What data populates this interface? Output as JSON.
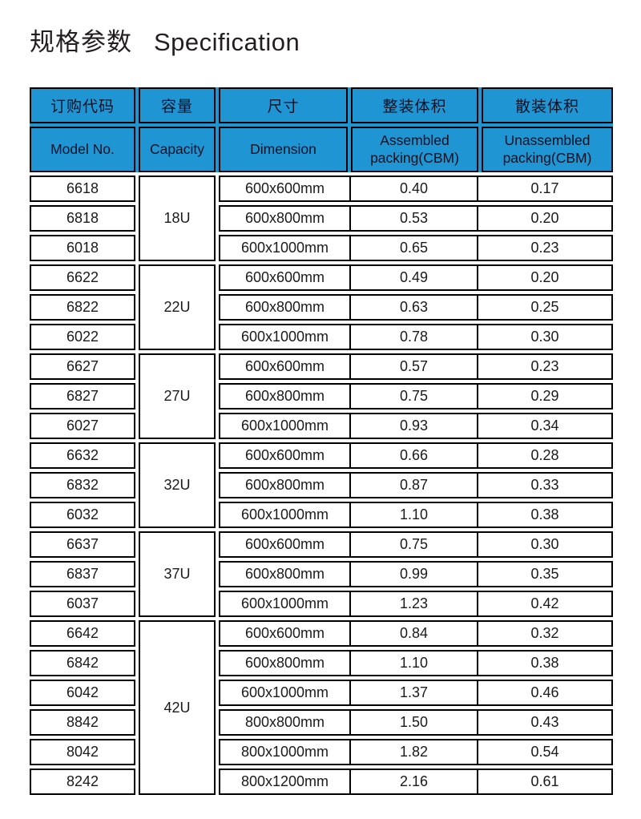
{
  "title": {
    "zh": "规格参数",
    "en": "Specification"
  },
  "colors": {
    "header_bg": "#1f95d4",
    "border": "#000000",
    "text": "#1a1a1a",
    "page_bg": "#ffffff"
  },
  "table": {
    "headers_zh": [
      "订购代码",
      "容量",
      "尺寸",
      "整装体积",
      "散装体积"
    ],
    "headers_en": [
      "Model No.",
      "Capacity",
      "Dimension",
      "Assembled packing(CBM)",
      "Unassembled packing(CBM)"
    ],
    "groups": [
      {
        "capacity": "18U",
        "rows": [
          {
            "model": "6618",
            "dimension": "600x600mm",
            "assembled": "0.40",
            "unassembled": "0.17"
          },
          {
            "model": "6818",
            "dimension": "600x800mm",
            "assembled": "0.53",
            "unassembled": "0.20"
          },
          {
            "model": "6018",
            "dimension": "600x1000mm",
            "assembled": "0.65",
            "unassembled": "0.23"
          }
        ]
      },
      {
        "capacity": "22U",
        "rows": [
          {
            "model": "6622",
            "dimension": "600x600mm",
            "assembled": "0.49",
            "unassembled": "0.20"
          },
          {
            "model": "6822",
            "dimension": "600x800mm",
            "assembled": "0.63",
            "unassembled": "0.25"
          },
          {
            "model": "6022",
            "dimension": "600x1000mm",
            "assembled": "0.78",
            "unassembled": "0.30"
          }
        ]
      },
      {
        "capacity": "27U",
        "rows": [
          {
            "model": "6627",
            "dimension": "600x600mm",
            "assembled": "0.57",
            "unassembled": "0.23"
          },
          {
            "model": "6827",
            "dimension": "600x800mm",
            "assembled": "0.75",
            "unassembled": "0.29"
          },
          {
            "model": "6027",
            "dimension": "600x1000mm",
            "assembled": "0.93",
            "unassembled": "0.34"
          }
        ]
      },
      {
        "capacity": "32U",
        "rows": [
          {
            "model": "6632",
            "dimension": "600x600mm",
            "assembled": "0.66",
            "unassembled": "0.28"
          },
          {
            "model": "6832",
            "dimension": "600x800mm",
            "assembled": "0.87",
            "unassembled": "0.33"
          },
          {
            "model": "6032",
            "dimension": "600x1000mm",
            "assembled": "1.10",
            "unassembled": "0.38"
          }
        ]
      },
      {
        "capacity": "37U",
        "rows": [
          {
            "model": "6637",
            "dimension": "600x600mm",
            "assembled": "0.75",
            "unassembled": "0.30"
          },
          {
            "model": "6837",
            "dimension": "600x800mm",
            "assembled": "0.99",
            "unassembled": "0.35"
          },
          {
            "model": "6037",
            "dimension": "600x1000mm",
            "assembled": "1.23",
            "unassembled": "0.42"
          }
        ]
      },
      {
        "capacity": "42U",
        "rows": [
          {
            "model": "6642",
            "dimension": "600x600mm",
            "assembled": "0.84",
            "unassembled": "0.32"
          },
          {
            "model": "6842",
            "dimension": "600x800mm",
            "assembled": "1.10",
            "unassembled": "0.38"
          },
          {
            "model": "6042",
            "dimension": "600x1000mm",
            "assembled": "1.37",
            "unassembled": "0.46"
          },
          {
            "model": "8842",
            "dimension": "800x800mm",
            "assembled": "1.50",
            "unassembled": "0.43"
          },
          {
            "model": "8042",
            "dimension": "800x1000mm",
            "assembled": "1.82",
            "unassembled": "0.54"
          },
          {
            "model": "8242",
            "dimension": "800x1200mm",
            "assembled": "2.16",
            "unassembled": "0.61"
          }
        ]
      }
    ]
  }
}
